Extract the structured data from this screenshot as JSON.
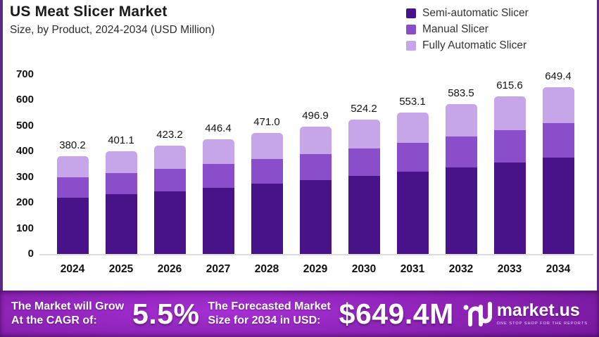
{
  "header": {
    "title": "US Meat Slicer Market",
    "subtitle": "Size, by Product, 2024-2034 (USD Million)"
  },
  "chart_data": {
    "type": "bar",
    "stacked": true,
    "title": "US Meat Slicer Market",
    "subtitle": "Size, by Product, 2024-2034 (USD Million)",
    "categories": [
      "2024",
      "2025",
      "2026",
      "2027",
      "2028",
      "2029",
      "2030",
      "2031",
      "2032",
      "2033",
      "2034"
    ],
    "series": [
      {
        "name": "Semi-automatic Slicer",
        "color": "#481289",
        "values": [
          220.5,
          232.6,
          245.5,
          258.9,
          273.2,
          288.2,
          304.0,
          320.8,
          338.4,
          357.0,
          376.7
        ]
      },
      {
        "name": "Manual Slicer",
        "color": "#8a4ecb",
        "values": [
          77.9,
          82.2,
          86.8,
          91.5,
          96.6,
          101.9,
          107.5,
          113.4,
          119.6,
          126.2,
          133.1
        ]
      },
      {
        "name": "Fully Automatic Slicer",
        "color": "#c6a6e9",
        "values": [
          81.8,
          86.3,
          90.9,
          96.0,
          101.2,
          106.8,
          112.7,
          118.9,
          125.5,
          132.4,
          139.6
        ]
      }
    ],
    "totals": [
      380.2,
      401.1,
      423.2,
      446.4,
      471.0,
      496.9,
      524.2,
      553.1,
      583.5,
      615.6,
      649.4
    ],
    "total_labels": [
      "380.2",
      "401.1",
      "423.2",
      "446.4",
      "471.0",
      "496.9",
      "524.2",
      "553.1",
      "583.5",
      "615.6",
      "649.4"
    ],
    "ylim": [
      0,
      700
    ],
    "yticks": [
      0,
      100,
      200,
      300,
      400,
      500,
      600,
      700
    ],
    "grid": false,
    "legend_position": "top-right",
    "note": "stacked segment values estimated from bar pixel heights; totals shown as data labels"
  },
  "banner": {
    "left_line1": "The Market will Grow",
    "left_line2": "At the CAGR of:",
    "cagr_value": "5.5%",
    "right_line1": "The Forecasted Market",
    "right_line2": "Size for 2034 in USD:",
    "forecast_value": "$649.4M",
    "brand_name": "market.us",
    "brand_tagline": "ONE STOP SHOP FOR THE REPORTS"
  }
}
